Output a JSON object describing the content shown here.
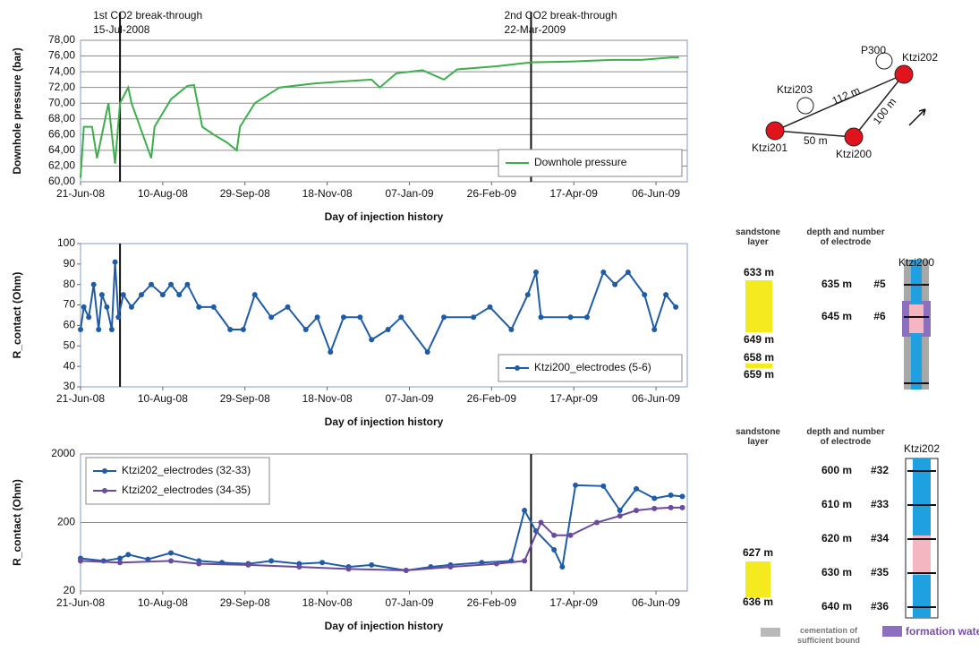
{
  "chart_data": [
    {
      "type": "line",
      "ylabel": "Downhole pressure (bar)",
      "xlabel": "Day of injection history",
      "xlim": [
        "2008-06-21",
        "2009-06-25"
      ],
      "ylim": [
        60,
        78
      ],
      "xticks": [
        {
          "value": "2008-06-21",
          "label": "21-Jun-08"
        },
        {
          "value": "2008-08-10",
          "label": "10-Aug-08"
        },
        {
          "value": "2008-09-29",
          "label": "29-Sep-08"
        },
        {
          "value": "2008-11-18",
          "label": "18-Nov-08"
        },
        {
          "value": "2009-01-07",
          "label": "07-Jan-09"
        },
        {
          "value": "2009-02-26",
          "label": "26-Feb-09"
        },
        {
          "value": "2009-04-17",
          "label": "17-Apr-09"
        },
        {
          "value": "2009-06-06",
          "label": "06-Jun-09"
        }
      ],
      "yticks": [
        {
          "value": 60,
          "label": "60,00"
        },
        {
          "value": 62,
          "label": "62,00"
        },
        {
          "value": 64,
          "label": "64,00"
        },
        {
          "value": 66,
          "label": "66,00"
        },
        {
          "value": 68,
          "label": "68,00"
        },
        {
          "value": 70,
          "label": "70,00"
        },
        {
          "value": 72,
          "label": "72,00"
        },
        {
          "value": 74,
          "label": "74,00"
        },
        {
          "value": 76,
          "label": "76,00"
        },
        {
          "value": 78,
          "label": "78,00"
        }
      ],
      "grid": true,
      "legend": "lower right",
      "markers": false,
      "annotations": [
        {
          "x": "2008-07-15",
          "text": "1st CO2 break-through",
          "date": "15-Jul-2008"
        },
        {
          "x": "2009-03-22",
          "text": "2nd CO2 break-through",
          "date": "22-Mar-2009"
        }
      ],
      "series": [
        {
          "name": "Downhole pressure",
          "color": "#3cae4b",
          "x": [
            "2008-06-21",
            "2008-06-23",
            "2008-06-28",
            "2008-07-01",
            "2008-07-08",
            "2008-07-12",
            "2008-07-15",
            "2008-07-20",
            "2008-07-22",
            "2008-08-03",
            "2008-08-05",
            "2008-08-15",
            "2008-08-25",
            "2008-08-29",
            "2008-09-03",
            "2008-09-10",
            "2008-09-18",
            "2008-09-24",
            "2008-09-26",
            "2008-10-05",
            "2008-10-20",
            "2008-11-10",
            "2008-11-30",
            "2008-12-15",
            "2008-12-20",
            "2008-12-30",
            "2009-01-15",
            "2009-01-28",
            "2009-02-05",
            "2009-03-01",
            "2009-03-22",
            "2009-04-15",
            "2009-05-10",
            "2009-05-28",
            "2009-06-15",
            "2009-06-20"
          ],
          "values": [
            60.5,
            67,
            67,
            63,
            70,
            62.3,
            70,
            72,
            70,
            63,
            67,
            70.5,
            72.2,
            72.3,
            67,
            66,
            65,
            64,
            67,
            70,
            72,
            72.5,
            72.8,
            73,
            72,
            73.8,
            74.2,
            73,
            74.3,
            74.7,
            75.2,
            75.3,
            75.5,
            75.5,
            75.8,
            75.8
          ]
        }
      ]
    },
    {
      "type": "line",
      "ylabel": "R_contact (Ohm)",
      "xlabel": "Day of injection history",
      "xlim": [
        "2008-06-21",
        "2009-06-25"
      ],
      "ylim": [
        30,
        100
      ],
      "xticks": [
        {
          "value": "2008-06-21",
          "label": "21-Jun-08"
        },
        {
          "value": "2008-08-10",
          "label": "10-Aug-08"
        },
        {
          "value": "2008-09-29",
          "label": "29-Sep-08"
        },
        {
          "value": "2008-11-18",
          "label": "18-Nov-08"
        },
        {
          "value": "2009-01-07",
          "label": "07-Jan-09"
        },
        {
          "value": "2009-02-26",
          "label": "26-Feb-09"
        },
        {
          "value": "2009-04-17",
          "label": "17-Apr-09"
        },
        {
          "value": "2009-06-06",
          "label": "06-Jun-09"
        }
      ],
      "yticks": [
        30,
        40,
        50,
        60,
        70,
        80,
        90,
        100
      ],
      "grid": false,
      "legend": "lower right",
      "markers": true,
      "vlines": [
        "2008-07-15"
      ],
      "series": [
        {
          "name": "Ktzi200_electrodes (5-6)",
          "color": "#1f5ca8",
          "x": [
            "2008-06-21",
            "2008-06-23",
            "2008-06-26",
            "2008-06-29",
            "2008-07-02",
            "2008-07-04",
            "2008-07-07",
            "2008-07-10",
            "2008-07-12",
            "2008-07-14",
            "2008-07-17",
            "2008-07-22",
            "2008-07-28",
            "2008-08-03",
            "2008-08-10",
            "2008-08-15",
            "2008-08-20",
            "2008-08-25",
            "2008-09-01",
            "2008-09-10",
            "2008-09-20",
            "2008-09-28",
            "2008-10-05",
            "2008-10-15",
            "2008-10-25",
            "2008-11-05",
            "2008-11-12",
            "2008-11-20",
            "2008-11-28",
            "2008-12-08",
            "2008-12-15",
            "2008-12-25",
            "2009-01-02",
            "2009-01-18",
            "2009-01-28",
            "2009-02-15",
            "2009-02-25",
            "2009-03-10",
            "2009-03-20",
            "2009-03-25",
            "2009-03-28",
            "2009-04-15",
            "2009-04-25",
            "2009-05-05",
            "2009-05-12",
            "2009-05-20",
            "2009-05-30",
            "2009-06-05",
            "2009-06-12",
            "2009-06-18"
          ],
          "values": [
            58,
            69,
            64,
            80,
            58,
            75,
            69,
            58,
            91,
            64,
            75,
            69,
            75,
            80,
            75,
            80,
            75,
            80,
            69,
            69,
            58,
            58,
            75,
            64,
            69,
            58,
            64,
            47,
            64,
            64,
            53,
            58,
            64,
            47,
            64,
            64,
            69,
            58,
            75,
            86,
            64,
            64,
            64,
            86,
            80,
            86,
            75,
            58,
            75,
            69
          ]
        }
      ]
    },
    {
      "type": "line",
      "ylabel": "R_contact (Ohm)",
      "xlabel": "Day of injection history",
      "xlim": [
        "2008-06-21",
        "2009-06-25"
      ],
      "ylim": [
        20,
        2000
      ],
      "log": true,
      "xticks": [
        {
          "value": "2008-06-21",
          "label": "21-Jun-08"
        },
        {
          "value": "2008-08-10",
          "label": "10-Aug-08"
        },
        {
          "value": "2008-09-29",
          "label": "29-Sep-08"
        },
        {
          "value": "2008-11-18",
          "label": "18-Nov-08"
        },
        {
          "value": "2009-01-07",
          "label": "07-Jan-09"
        },
        {
          "value": "2009-02-26",
          "label": "26-Feb-09"
        },
        {
          "value": "2009-04-17",
          "label": "17-Apr-09"
        },
        {
          "value": "2009-06-06",
          "label": "06-Jun-09"
        }
      ],
      "yticks": [
        20,
        200,
        2000
      ],
      "grid": true,
      "legend": "upper left",
      "markers": true,
      "vlines": [
        "2009-03-22"
      ],
      "series": [
        {
          "name": "Ktzi202_electrodes (32-33)",
          "color": "#1f5ca8",
          "x": [
            "2008-06-21",
            "2008-07-05",
            "2008-07-15",
            "2008-07-20",
            "2008-08-01",
            "2008-08-15",
            "2008-09-01",
            "2008-09-15",
            "2008-10-01",
            "2008-10-15",
            "2008-11-01",
            "2008-11-15",
            "2008-12-01",
            "2008-12-15",
            "2009-01-05",
            "2009-01-20",
            "2009-02-01",
            "2009-02-20",
            "2009-03-10",
            "2009-03-18",
            "2009-03-25",
            "2009-04-05",
            "2009-04-10",
            "2009-04-18",
            "2009-05-05",
            "2009-05-15",
            "2009-05-25",
            "2009-06-05",
            "2009-06-15",
            "2009-06-22"
          ],
          "values": [
            60,
            55,
            60,
            68,
            58,
            72,
            55,
            52,
            50,
            55,
            50,
            52,
            45,
            48,
            40,
            45,
            48,
            52,
            55,
            300,
            150,
            80,
            45,
            700,
            680,
            300,
            620,
            450,
            500,
            480
          ]
        },
        {
          "name": "Ktzi202_electrodes (34-35)",
          "color": "#6a4a9c",
          "x": [
            "2008-06-21",
            "2008-07-15",
            "2008-08-15",
            "2008-09-01",
            "2008-10-01",
            "2008-11-01",
            "2008-12-01",
            "2009-01-05",
            "2009-02-01",
            "2009-03-01",
            "2009-03-18",
            "2009-03-28",
            "2009-04-05",
            "2009-04-15",
            "2009-05-01",
            "2009-05-15",
            "2009-05-25",
            "2009-06-05",
            "2009-06-15",
            "2009-06-22"
          ],
          "values": [
            55,
            52,
            55,
            50,
            48,
            45,
            42,
            40,
            45,
            50,
            55,
            200,
            130,
            130,
            200,
            250,
            300,
            320,
            330,
            330
          ]
        }
      ]
    }
  ],
  "site_map": {
    "nodes": [
      "P300",
      "Ktzi202",
      "Ktzi203",
      "Ktzi201",
      "Ktzi200"
    ],
    "distances": [
      "112 m",
      "100 m",
      "50 m"
    ]
  },
  "well_ktzi200": {
    "layer_header": "sandstone layer",
    "electrode_header": "depth and number of electrode",
    "well": "Ktzi200",
    "layers": [
      "633 m",
      "649 m",
      "658 m",
      "659 m"
    ],
    "electrodes": [
      [
        "635 m",
        "#5"
      ],
      [
        "645 m",
        "#6"
      ]
    ]
  },
  "well_ktzi202": {
    "layer_header": "sandstone layer",
    "electrode_header": "depth and number of electrode",
    "well": "Ktzi202",
    "layers": [
      "627 m",
      "636 m"
    ],
    "electrodes": [
      [
        "600 m",
        "#32"
      ],
      [
        "610 m",
        "#33"
      ],
      [
        "620 m",
        "#34"
      ],
      [
        "630 m",
        "#35"
      ],
      [
        "640 m",
        "#36"
      ]
    ]
  },
  "key": [
    "cementation of sufficient bound",
    "formation water"
  ]
}
